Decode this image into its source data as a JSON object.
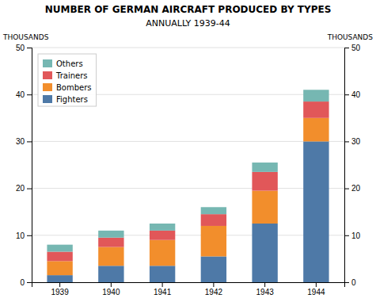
{
  "chart_data": {
    "type": "bar",
    "stacked": true,
    "title": "NUMBER OF GERMAN AIRCRAFT PRODUCED BY TYPES",
    "subtitle": "ANNUALLY  1939-44",
    "ylabel": "THOUSANDS",
    "y2label": "THOUSANDS",
    "categories": [
      "1939",
      "1940",
      "1941",
      "1942",
      "1943",
      "1944"
    ],
    "series": [
      {
        "name": "Fighters",
        "values": [
          1.5,
          3.5,
          3.5,
          5.5,
          12.5,
          30.0
        ]
      },
      {
        "name": "Bombers",
        "values": [
          3.0,
          4.0,
          5.5,
          6.5,
          7.0,
          5.0
        ]
      },
      {
        "name": "Trainers",
        "values": [
          2.0,
          2.0,
          2.0,
          2.5,
          4.0,
          3.5
        ]
      },
      {
        "name": "Others",
        "values": [
          1.5,
          1.5,
          1.5,
          1.5,
          2.0,
          2.5
        ]
      }
    ],
    "ylim": [
      0,
      50
    ],
    "yticks": [
      0,
      10,
      20,
      30,
      40,
      50
    ],
    "y2lim": [
      0,
      50
    ],
    "y2ticks": [
      0,
      10,
      20,
      30,
      40,
      50
    ],
    "grid": true,
    "legend": "upper left"
  }
}
